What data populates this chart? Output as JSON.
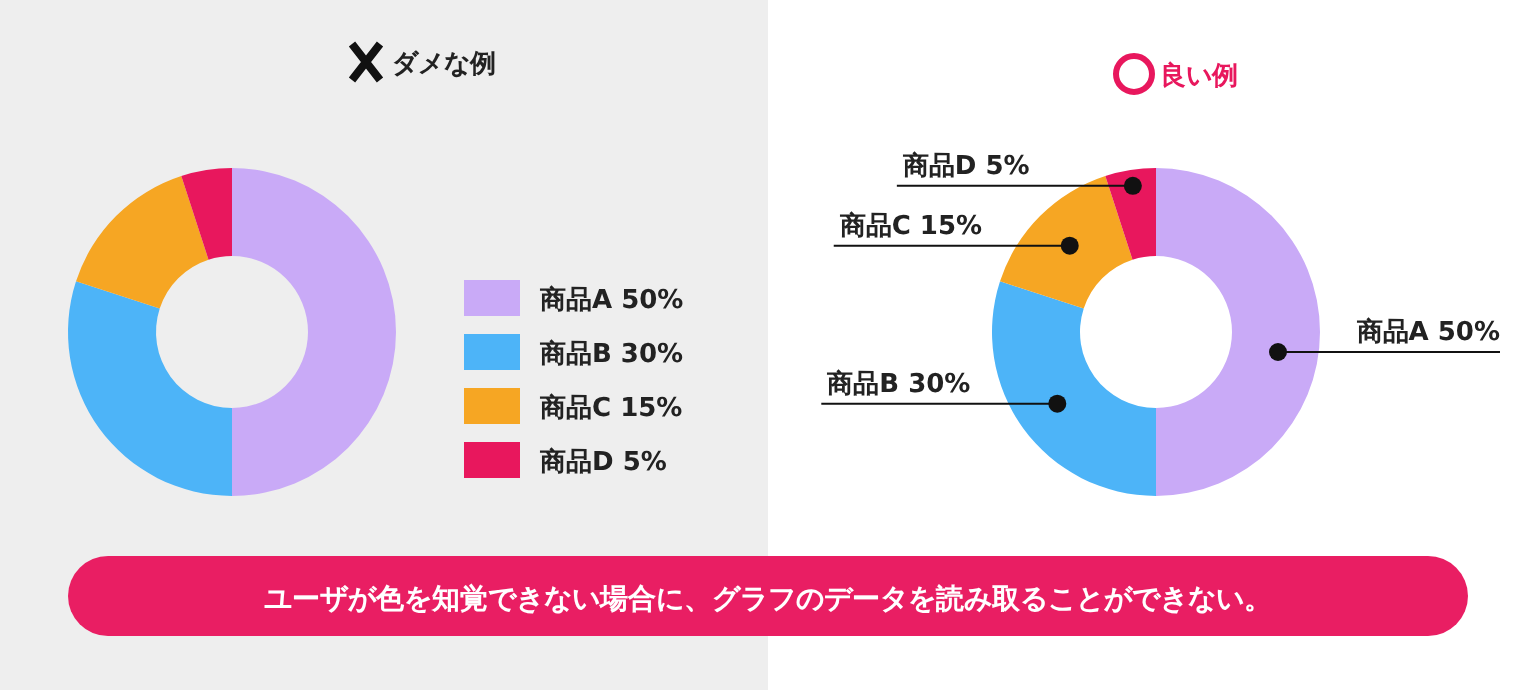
{
  "chart_data": [
    {
      "type": "donut",
      "title": "ダメな例",
      "categories": [
        "商品A",
        "商品B",
        "商品C",
        "商品D"
      ],
      "values": [
        50,
        30,
        15,
        5
      ],
      "colors": [
        "#c9aaf7",
        "#4db4f8",
        "#f6a623",
        "#e8175d"
      ],
      "value_labels": [
        "50%",
        "30%",
        "15%",
        "5%"
      ],
      "legend": "right",
      "annotations": [
        "ユーザが色を知覚できない場合に、グラフのデータを読み取ることができない。"
      ]
    },
    {
      "type": "donut",
      "title": "良い例",
      "categories": [
        "商品A",
        "商品B",
        "商品C",
        "商品D"
      ],
      "values": [
        50,
        30,
        15,
        5
      ],
      "colors": [
        "#c9aaf7",
        "#4db4f8",
        "#f6a623",
        "#e8175d"
      ],
      "value_labels": [
        "50%",
        "30%",
        "15%",
        "5%"
      ],
      "legend": false
    }
  ]
}
